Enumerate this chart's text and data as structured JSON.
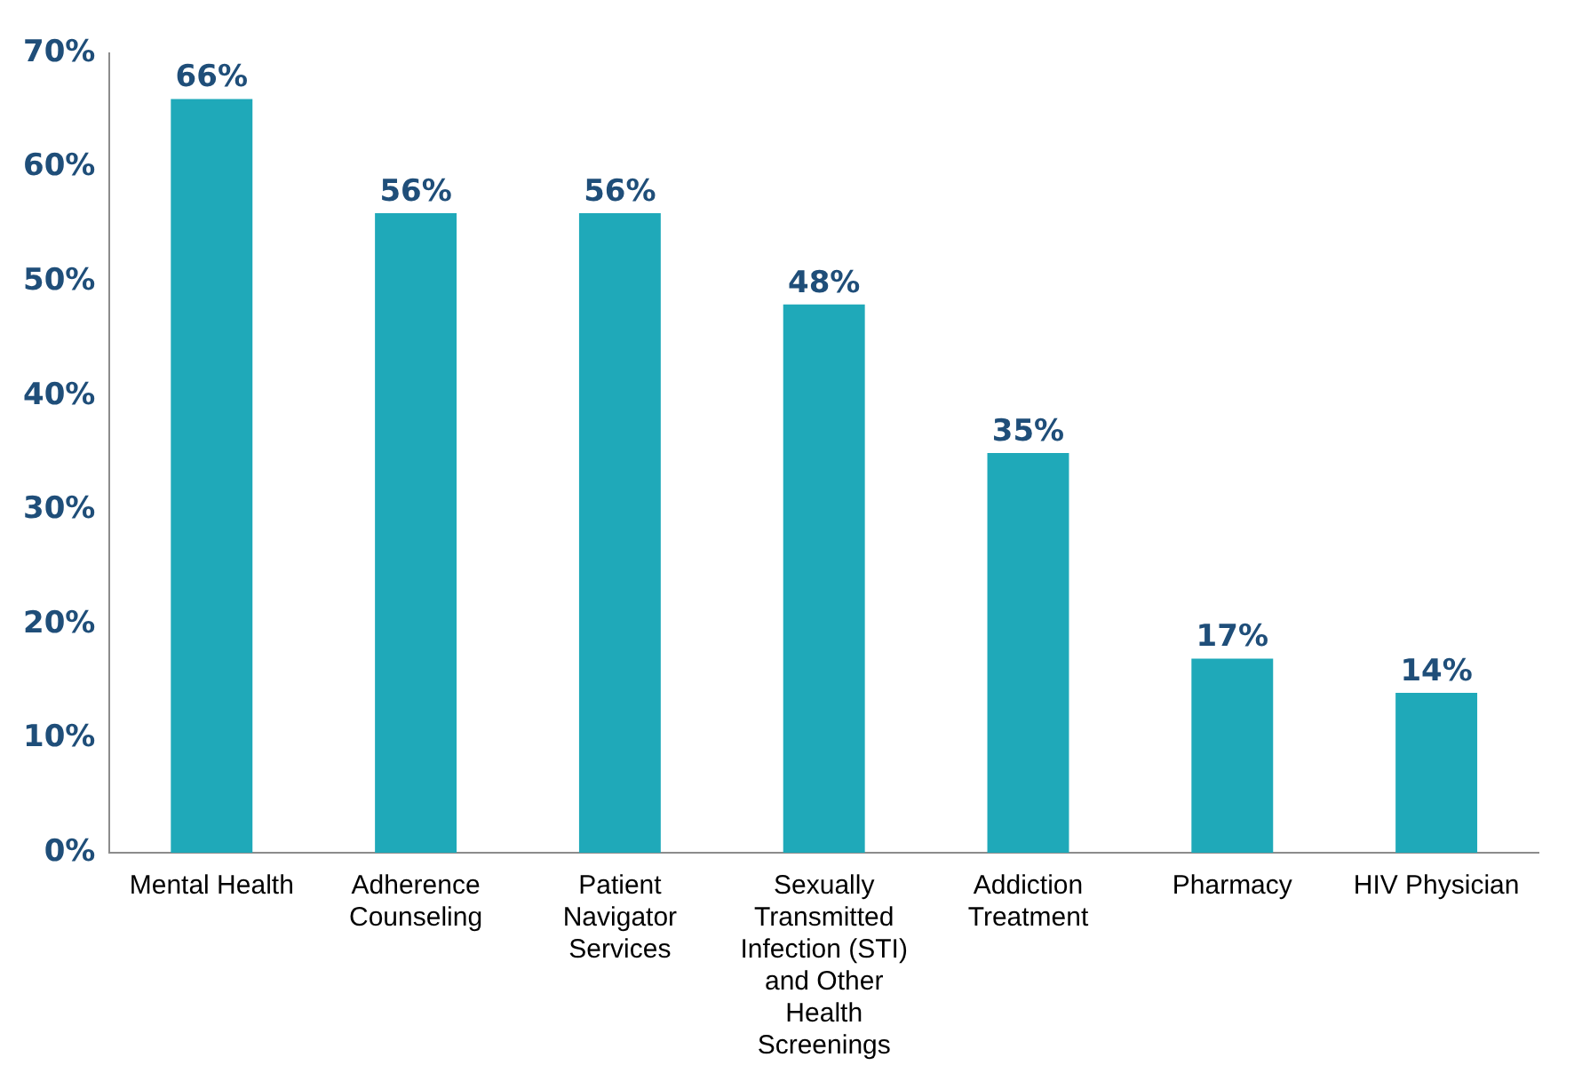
{
  "chart_data": {
    "type": "bar",
    "categories": [
      "Mental Health",
      "Adherence Counseling",
      "Patient Navigator Services",
      "Sexually Transmitted Infection (STI) and Other Health Screenings",
      "Addiction Treatment",
      "Pharmacy",
      "HIV Physician"
    ],
    "values": [
      66,
      56,
      56,
      48,
      35,
      17,
      14
    ],
    "value_labels": [
      "66%",
      "56%",
      "56%",
      "48%",
      "35%",
      "17%",
      "14%"
    ],
    "color": "#1fa9b9",
    "ylim": [
      0,
      70
    ],
    "yticks": [
      {
        "value": 0,
        "label": "0%"
      },
      {
        "value": 10,
        "label": "10%"
      },
      {
        "value": 20,
        "label": "20%"
      },
      {
        "value": 30,
        "label": "30%"
      },
      {
        "value": 40,
        "label": "40%"
      },
      {
        "value": 50,
        "label": "50%"
      },
      {
        "value": 60,
        "label": "60%"
      },
      {
        "value": 70,
        "label": "70%"
      }
    ],
    "grid": false,
    "legend": false
  }
}
